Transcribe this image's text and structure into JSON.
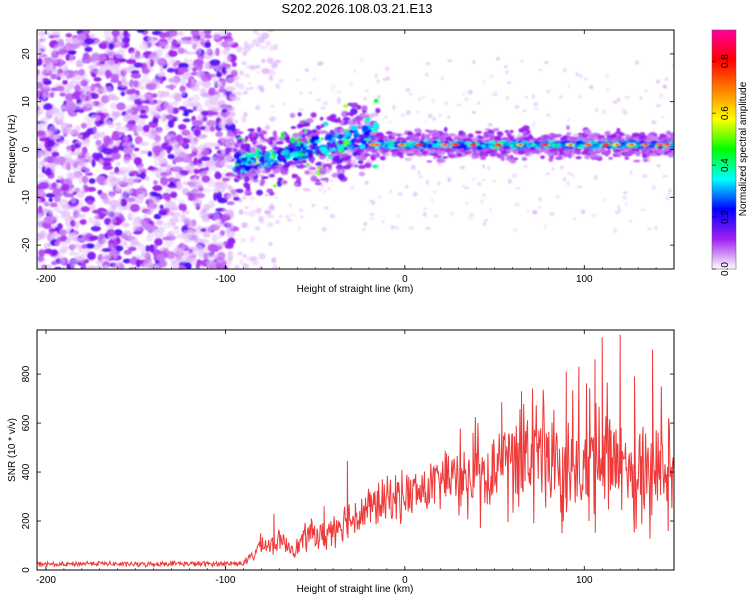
{
  "title": "S202.2026.108.03.21.E13",
  "chart_data": [
    {
      "type": "heatmap",
      "xlabel": "Height of straight line (km)",
      "ylabel": "Frequency (Hz)",
      "xlim": [
        -205,
        150
      ],
      "ylim": [
        -25,
        25
      ],
      "xticks": [
        -200,
        -100,
        0,
        100
      ],
      "yticks": [
        -20,
        -10,
        0,
        10,
        20
      ],
      "colorbar": {
        "label": "Normalized spectral amplitude",
        "range": [
          0,
          0.92
        ],
        "ticks": [
          0.0,
          0.2,
          0.4,
          0.6,
          0.8
        ],
        "tick_labels": [
          "0.0",
          "0.2",
          "0.4",
          "0.6",
          "0.8"
        ],
        "colors": [
          "#ffffff",
          "#a020f0",
          "#0000ff",
          "#00ffff",
          "#00ff00",
          "#ffff00",
          "#ff8000",
          "#ff0000",
          "#ff00a0"
        ]
      },
      "features": [
        {
          "region": "x < -95 km",
          "description": "broadband noise across all frequencies"
        },
        {
          "region": "-95 to -15 km",
          "description": "band drifting upward from about -3 Hz to about 3 Hz"
        },
        {
          "region": "-15 to 150 km",
          "description": "narrow band near 1 Hz, peak values about 0.8-0.9"
        }
      ]
    },
    {
      "type": "line",
      "xlabel": "Height of straight line (km)",
      "ylabel": "SNR (10 * v/v)",
      "xlim": [
        -205,
        150
      ],
      "ylim": [
        0,
        980
      ],
      "xticks": [
        -200,
        -100,
        0,
        100
      ],
      "yticks": [
        0,
        200,
        400,
        600,
        800
      ],
      "color": "#ee3a3a",
      "series": [
        {
          "name": "SNR",
          "x": [
            -205,
            -190,
            -175,
            -160,
            -145,
            -130,
            -115,
            -100,
            -90,
            -85,
            -80,
            -75,
            -70,
            -65,
            -60,
            -55,
            -50,
            -45,
            -40,
            -35,
            -30,
            -25,
            -20,
            -15,
            -10,
            -5,
            0,
            10,
            20,
            30,
            40,
            50,
            60,
            70,
            80,
            90,
            100,
            110,
            120,
            130,
            140,
            150
          ],
          "y": [
            25,
            22,
            28,
            24,
            23,
            27,
            25,
            26,
            28,
            55,
            110,
            95,
            120,
            100,
            90,
            140,
            150,
            130,
            175,
            200,
            210,
            230,
            250,
            270,
            280,
            300,
            305,
            320,
            360,
            380,
            400,
            420,
            440,
            430,
            440,
            420,
            430,
            440,
            430,
            420,
            430,
            400
          ],
          "spread": [
            10,
            10,
            10,
            10,
            10,
            10,
            10,
            10,
            10,
            25,
            40,
            40,
            40,
            40,
            40,
            60,
            60,
            60,
            80,
            80,
            80,
            90,
            90,
            90,
            100,
            100,
            100,
            100,
            110,
            110,
            130,
            150,
            170,
            180,
            180,
            180,
            190,
            190,
            190,
            190,
            190,
            180
          ],
          "peaks": [
            {
              "x": -73,
              "y": 230
            },
            {
              "x": -45,
              "y": 260
            },
            {
              "x": -32,
              "y": 445
            },
            {
              "x": 38,
              "y": 560
            },
            {
              "x": 54,
              "y": 685
            },
            {
              "x": 65,
              "y": 730
            },
            {
              "x": 90,
              "y": 810
            },
            {
              "x": 97,
              "y": 830
            },
            {
              "x": 106,
              "y": 860
            },
            {
              "x": 110,
              "y": 950
            },
            {
              "x": 120,
              "y": 960
            },
            {
              "x": 128,
              "y": 790
            },
            {
              "x": 138,
              "y": 900
            },
            {
              "x": 147,
              "y": 620
            }
          ]
        }
      ]
    }
  ]
}
